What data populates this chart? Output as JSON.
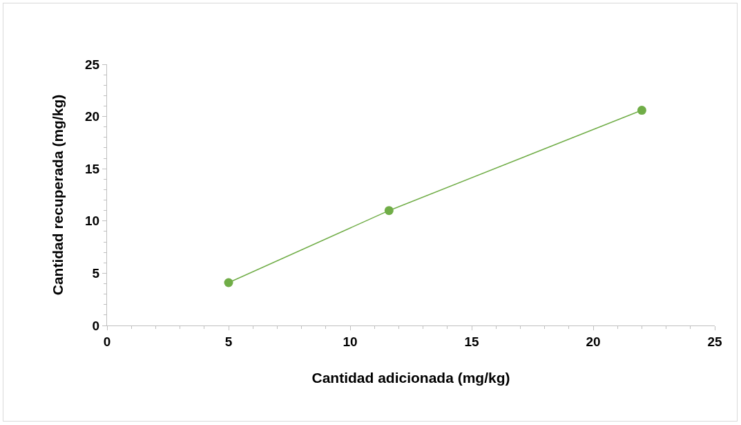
{
  "chart_data": {
    "type": "line",
    "xlabel": "Cantidad adicionada (mg/kg)",
    "ylabel": "Cantidad recuperada (mg/kg)",
    "x": [
      5,
      11.6,
      22.0
    ],
    "series": [
      {
        "color": "#70ad47",
        "values": [
          4.1,
          11.0,
          20.6
        ]
      }
    ],
    "xlim": [
      0,
      25
    ],
    "xticks": [
      0,
      5,
      10,
      15,
      20,
      25
    ],
    "ylim": [
      0,
      25
    ],
    "yticks": [
      0,
      5,
      10,
      15,
      20,
      25
    ],
    "grid": false,
    "marker": "circle",
    "line_style": "solid"
  }
}
